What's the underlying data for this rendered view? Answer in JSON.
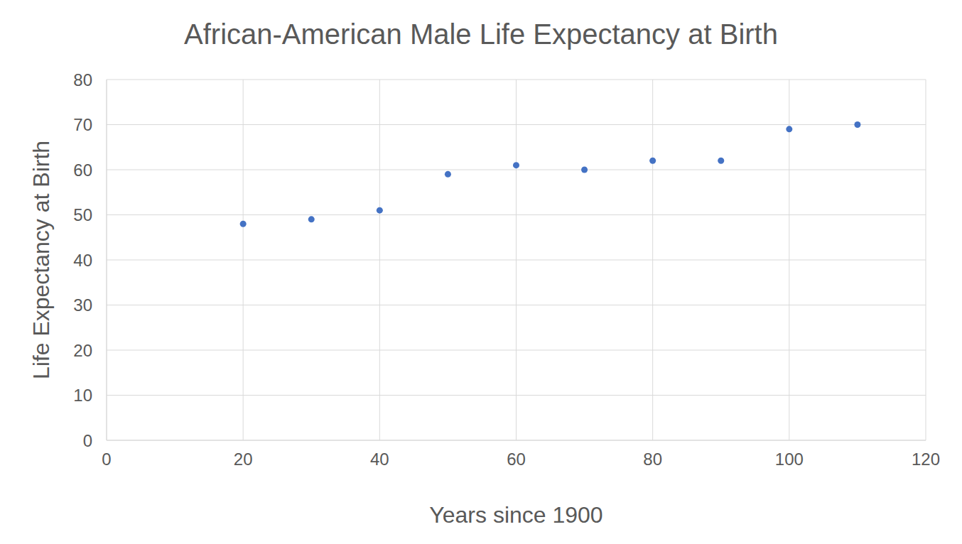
{
  "chart_data": {
    "type": "scatter",
    "title": "African-American Male Life Expectancy at Birth",
    "x_label": "Years since 1900",
    "y_label": "Life Expectancy at Birth",
    "x": [
      20,
      30,
      40,
      50,
      60,
      70,
      80,
      90,
      100,
      110
    ],
    "values": [
      48,
      49,
      51,
      59,
      61,
      60,
      62,
      62,
      69,
      70
    ],
    "color": "#4472c4",
    "marker": "circle",
    "xlim": [
      0,
      120
    ],
    "xticks": [
      0,
      20,
      40,
      60,
      80,
      100,
      120
    ],
    "ylim": [
      0,
      80
    ],
    "yticks": [
      0,
      10,
      20,
      30,
      40,
      50,
      60,
      70,
      80
    ],
    "grid": true
  }
}
